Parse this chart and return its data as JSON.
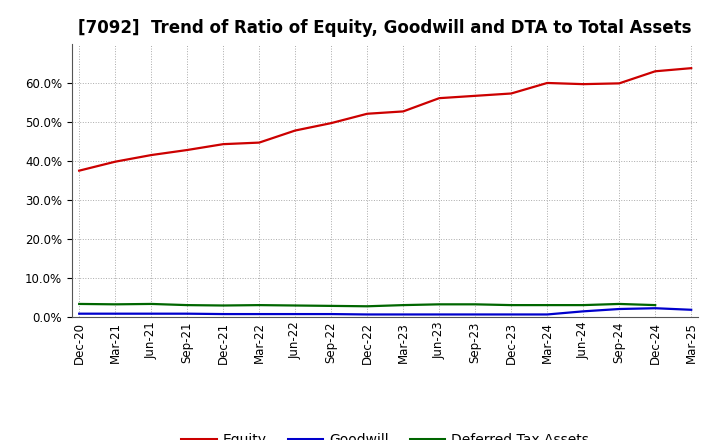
{
  "title": "[7092]  Trend of Ratio of Equity, Goodwill and DTA to Total Assets",
  "x_labels": [
    "Dec-20",
    "Mar-21",
    "Jun-21",
    "Sep-21",
    "Dec-21",
    "Mar-22",
    "Jun-22",
    "Sep-22",
    "Dec-22",
    "Mar-23",
    "Jun-23",
    "Sep-23",
    "Dec-23",
    "Mar-24",
    "Jun-24",
    "Sep-24",
    "Dec-24",
    "Mar-25"
  ],
  "equity": [
    0.375,
    0.398,
    0.415,
    0.428,
    0.443,
    0.447,
    0.478,
    0.497,
    0.521,
    0.527,
    0.561,
    0.567,
    0.573,
    0.6,
    0.597,
    0.599,
    0.63,
    0.638
  ],
  "goodwill": [
    0.008,
    0.008,
    0.008,
    0.008,
    0.007,
    0.007,
    0.007,
    0.007,
    0.006,
    0.006,
    0.006,
    0.006,
    0.006,
    0.006,
    0.014,
    0.02,
    0.022,
    0.018
  ],
  "dta": [
    0.033,
    0.032,
    0.033,
    0.03,
    0.029,
    0.03,
    0.029,
    0.028,
    0.027,
    0.03,
    0.032,
    0.032,
    0.03,
    0.03,
    0.03,
    0.033,
    0.03,
    null
  ],
  "equity_color": "#cc0000",
  "goodwill_color": "#0000cc",
  "dta_color": "#006600",
  "background_color": "#ffffff",
  "grid_color": "#aaaaaa",
  "ylim": [
    0.0,
    0.7
  ],
  "yticks": [
    0.0,
    0.1,
    0.2,
    0.3,
    0.4,
    0.5,
    0.6
  ],
  "legend_labels": [
    "Equity",
    "Goodwill",
    "Deferred Tax Assets"
  ],
  "title_fontsize": 12,
  "axis_fontsize": 8.5,
  "legend_fontsize": 10
}
